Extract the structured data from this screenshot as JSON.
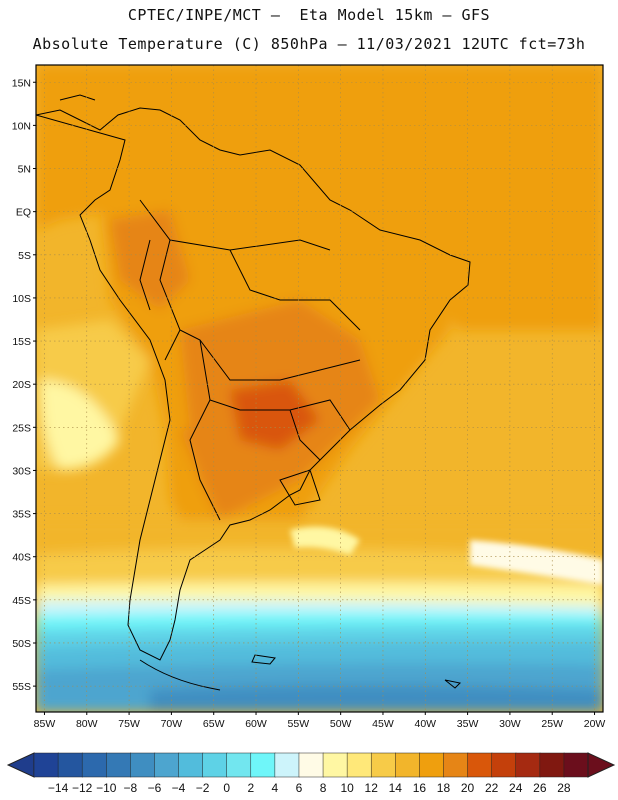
{
  "header": {
    "line1": "CPTEC/INPE/MCT –  Eta Model 15km – GFS",
    "line2": "Absolute Temperature (C) 850hPa – 11/03/2021 12UTC fct=73h"
  },
  "map": {
    "lon_range": [
      -86,
      -19
    ],
    "lat_range": [
      -58,
      17
    ],
    "lat_ticks": [
      {
        "value": 15,
        "label": "15N"
      },
      {
        "value": 10,
        "label": "10N"
      },
      {
        "value": 5,
        "label": "5N"
      },
      {
        "value": 0,
        "label": "EQ"
      },
      {
        "value": -5,
        "label": "5S"
      },
      {
        "value": -10,
        "label": "10S"
      },
      {
        "value": -15,
        "label": "15S"
      },
      {
        "value": -20,
        "label": "20S"
      },
      {
        "value": -25,
        "label": "25S"
      },
      {
        "value": -30,
        "label": "30S"
      },
      {
        "value": -35,
        "label": "35S"
      },
      {
        "value": -40,
        "label": "40S"
      },
      {
        "value": -45,
        "label": "45S"
      },
      {
        "value": -50,
        "label": "50S"
      },
      {
        "value": -55,
        "label": "55S"
      }
    ],
    "lon_ticks": [
      {
        "value": -85,
        "label": "85W"
      },
      {
        "value": -80,
        "label": "80W"
      },
      {
        "value": -75,
        "label": "75W"
      },
      {
        "value": -70,
        "label": "70W"
      },
      {
        "value": -65,
        "label": "65W"
      },
      {
        "value": -60,
        "label": "60W"
      },
      {
        "value": -55,
        "label": "55W"
      },
      {
        "value": -50,
        "label": "50W"
      },
      {
        "value": -45,
        "label": "45W"
      },
      {
        "value": -40,
        "label": "40W"
      },
      {
        "value": -35,
        "label": "35W"
      },
      {
        "value": -30,
        "label": "30W"
      },
      {
        "value": -25,
        "label": "25W"
      },
      {
        "value": -20,
        "label": "20W"
      }
    ]
  },
  "colorbar": {
    "labels": [
      "-14",
      "-12",
      "-10",
      "-8",
      "-6",
      "-4",
      "-2",
      "0",
      "2",
      "4",
      "6",
      "8",
      "10",
      "12",
      "14",
      "16",
      "18",
      "20",
      "22",
      "24",
      "26",
      "28"
    ],
    "under_color": "#1f3d8c",
    "over_color": "#6b0e1c",
    "colors": [
      "#1f4396",
      "#24569f",
      "#2c69ad",
      "#3479b5",
      "#3f8ec1",
      "#4da5cf",
      "#52bcdc",
      "#5ed2e6",
      "#72e6ef",
      "#6ff6f9",
      "#cdf4fb",
      "#fffbe6",
      "#fff7a3",
      "#ffe879",
      "#f7cb48",
      "#f2b52b",
      "#ef9f0e",
      "#e68516",
      "#d9570a",
      "#c4400b",
      "#a52a11",
      "#801810",
      "#6b0e1c"
    ]
  }
}
